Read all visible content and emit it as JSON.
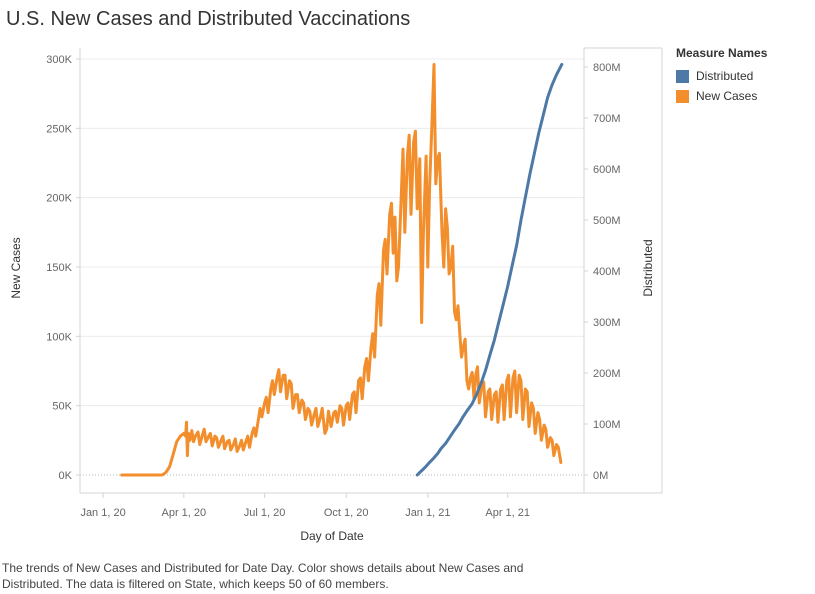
{
  "title": "U.S. New Cases and Distributed Vaccinations",
  "legend": {
    "title": "Measure Names",
    "items": [
      {
        "label": "Distributed",
        "color": "#4e79a7"
      },
      {
        "label": "New Cases",
        "color": "#f28e2b"
      }
    ]
  },
  "caption": "The trends of New Cases and Distributed for Date Day.  Color shows details about New Cases and Distributed. The data is filtered on State, which keeps 50 of 60 members.",
  "chart_data": {
    "type": "line",
    "xlabel": "Day of Date",
    "ylabel_left": "New Cases",
    "ylabel_right": "Distributed",
    "x_ticks": [
      {
        "date": "2020-01-01",
        "label": "Jan 1, 20"
      },
      {
        "date": "2020-04-01",
        "label": "Apr 1, 20"
      },
      {
        "date": "2020-07-01",
        "label": "Jul 1, 20"
      },
      {
        "date": "2020-10-01",
        "label": "Oct 1, 20"
      },
      {
        "date": "2021-01-01",
        "label": "Jan 1, 21"
      },
      {
        "date": "2021-04-01",
        "label": "Apr 1, 21"
      }
    ],
    "xlim": [
      "2019-12-06",
      "2021-06-26"
    ],
    "ylim_left": [
      0,
      305000
    ],
    "ylim_right": [
      0,
      826000000
    ],
    "y_ticks_left": [
      {
        "value": 0,
        "label": "0K"
      },
      {
        "value": 50000,
        "label": "50K"
      },
      {
        "value": 100000,
        "label": "100K"
      },
      {
        "value": 150000,
        "label": "150K"
      },
      {
        "value": 200000,
        "label": "200K"
      },
      {
        "value": 250000,
        "label": "250K"
      },
      {
        "value": 300000,
        "label": "300K"
      }
    ],
    "y_ticks_right": [
      {
        "value": 0,
        "label": "0M"
      },
      {
        "value": 100000000,
        "label": "100M"
      },
      {
        "value": 200000000,
        "label": "200M"
      },
      {
        "value": 300000000,
        "label": "300M"
      },
      {
        "value": 400000000,
        "label": "400M"
      },
      {
        "value": 500000000,
        "label": "500M"
      },
      {
        "value": 600000000,
        "label": "600M"
      },
      {
        "value": 700000000,
        "label": "700M"
      },
      {
        "value": 800000000,
        "label": "800M"
      }
    ],
    "grid": true,
    "legend_position": "top-right",
    "series": [
      {
        "name": "New Cases",
        "axis": "left",
        "color": "#f28e2b",
        "points": [
          [
            "2020-01-22",
            0
          ],
          [
            "2020-02-15",
            0
          ],
          [
            "2020-03-01",
            0
          ],
          [
            "2020-03-08",
            100
          ],
          [
            "2020-03-12",
            2000
          ],
          [
            "2020-03-16",
            6000
          ],
          [
            "2020-03-20",
            15000
          ],
          [
            "2020-03-24",
            24000
          ],
          [
            "2020-03-28",
            28000
          ],
          [
            "2020-04-01",
            30000
          ],
          [
            "2020-04-03",
            28000
          ],
          [
            "2020-04-04",
            38000
          ],
          [
            "2020-04-05",
            14000
          ],
          [
            "2020-04-06",
            30000
          ],
          [
            "2020-04-08",
            25000
          ],
          [
            "2020-04-10",
            32000
          ],
          [
            "2020-04-12",
            24000
          ],
          [
            "2020-04-14",
            28000
          ],
          [
            "2020-04-17",
            31000
          ],
          [
            "2020-04-19",
            22000
          ],
          [
            "2020-04-22",
            29000
          ],
          [
            "2020-04-24",
            33000
          ],
          [
            "2020-04-26",
            24000
          ],
          [
            "2020-04-29",
            28000
          ],
          [
            "2020-05-01",
            30000
          ],
          [
            "2020-05-03",
            21000
          ],
          [
            "2020-05-06",
            28000
          ],
          [
            "2020-05-08",
            27000
          ],
          [
            "2020-05-10",
            20000
          ],
          [
            "2020-05-13",
            25000
          ],
          [
            "2020-05-15",
            28000
          ],
          [
            "2020-05-17",
            19000
          ],
          [
            "2020-05-20",
            24000
          ],
          [
            "2020-05-22",
            25000
          ],
          [
            "2020-05-24",
            18000
          ],
          [
            "2020-05-27",
            22000
          ],
          [
            "2020-05-29",
            26000
          ],
          [
            "2020-05-31",
            17000
          ],
          [
            "2020-06-03",
            21000
          ],
          [
            "2020-06-05",
            25000
          ],
          [
            "2020-06-07",
            18000
          ],
          [
            "2020-06-10",
            24000
          ],
          [
            "2020-06-12",
            28000
          ],
          [
            "2020-06-14",
            20000
          ],
          [
            "2020-06-17",
            30000
          ],
          [
            "2020-06-19",
            34000
          ],
          [
            "2020-06-21",
            28000
          ],
          [
            "2020-06-24",
            40000
          ],
          [
            "2020-06-26",
            48000
          ],
          [
            "2020-06-28",
            42000
          ],
          [
            "2020-07-01",
            52000
          ],
          [
            "2020-07-03",
            56000
          ],
          [
            "2020-07-05",
            45000
          ],
          [
            "2020-07-08",
            62000
          ],
          [
            "2020-07-10",
            68000
          ],
          [
            "2020-07-12",
            58000
          ],
          [
            "2020-07-15",
            70000
          ],
          [
            "2020-07-17",
            76000
          ],
          [
            "2020-07-19",
            60000
          ],
          [
            "2020-07-22",
            72000
          ],
          [
            "2020-07-24",
            72000
          ],
          [
            "2020-07-26",
            55000
          ],
          [
            "2020-07-29",
            68000
          ],
          [
            "2020-07-31",
            66000
          ],
          [
            "2020-08-02",
            48000
          ],
          [
            "2020-08-05",
            58000
          ],
          [
            "2020-08-07",
            58000
          ],
          [
            "2020-08-09",
            45000
          ],
          [
            "2020-08-12",
            54000
          ],
          [
            "2020-08-14",
            52000
          ],
          [
            "2020-08-16",
            40000
          ],
          [
            "2020-08-19",
            48000
          ],
          [
            "2020-08-21",
            46000
          ],
          [
            "2020-08-23",
            36000
          ],
          [
            "2020-08-26",
            44000
          ],
          [
            "2020-08-28",
            48000
          ],
          [
            "2020-08-30",
            35000
          ],
          [
            "2020-09-02",
            42000
          ],
          [
            "2020-09-04",
            48000
          ],
          [
            "2020-09-07",
            30000
          ],
          [
            "2020-09-09",
            33000
          ],
          [
            "2020-09-11",
            46000
          ],
          [
            "2020-09-14",
            35000
          ],
          [
            "2020-09-17",
            45000
          ],
          [
            "2020-09-19",
            46000
          ],
          [
            "2020-09-21",
            38000
          ],
          [
            "2020-09-24",
            50000
          ],
          [
            "2020-09-26",
            48000
          ],
          [
            "2020-09-28",
            36000
          ],
          [
            "2020-10-01",
            50000
          ],
          [
            "2020-10-03",
            52000
          ],
          [
            "2020-10-05",
            40000
          ],
          [
            "2020-10-08",
            58000
          ],
          [
            "2020-10-10",
            60000
          ],
          [
            "2020-10-12",
            45000
          ],
          [
            "2020-10-15",
            68000
          ],
          [
            "2020-10-17",
            70000
          ],
          [
            "2020-10-19",
            55000
          ],
          [
            "2020-10-22",
            78000
          ],
          [
            "2020-10-24",
            84000
          ],
          [
            "2020-10-26",
            68000
          ],
          [
            "2020-10-29",
            92000
          ],
          [
            "2020-10-31",
            102000
          ],
          [
            "2020-11-02",
            85000
          ],
          [
            "2020-11-05",
            130000
          ],
          [
            "2020-11-07",
            138000
          ],
          [
            "2020-11-09",
            108000
          ],
          [
            "2020-11-12",
            162000
          ],
          [
            "2020-11-14",
            170000
          ],
          [
            "2020-11-16",
            145000
          ],
          [
            "2020-11-19",
            188000
          ],
          [
            "2020-11-21",
            196000
          ],
          [
            "2020-11-23",
            160000
          ],
          [
            "2020-11-25",
            186000
          ],
          [
            "2020-11-27",
            140000
          ],
          [
            "2020-11-29",
            150000
          ],
          [
            "2020-12-02",
            200000
          ],
          [
            "2020-12-04",
            235000
          ],
          [
            "2020-12-06",
            175000
          ],
          [
            "2020-12-09",
            230000
          ],
          [
            "2020-12-11",
            245000
          ],
          [
            "2020-12-13",
            188000
          ],
          [
            "2020-12-16",
            240000
          ],
          [
            "2020-12-18",
            248000
          ],
          [
            "2020-12-20",
            192000
          ],
          [
            "2020-12-23",
            228000
          ],
          [
            "2020-12-25",
            110000
          ],
          [
            "2020-12-27",
            175000
          ],
          [
            "2020-12-30",
            230000
          ],
          [
            "2021-01-01",
            150000
          ],
          [
            "2021-01-03",
            208000
          ],
          [
            "2021-01-06",
            260000
          ],
          [
            "2021-01-08",
            296000
          ],
          [
            "2021-01-10",
            210000
          ],
          [
            "2021-01-12",
            228000
          ],
          [
            "2021-01-14",
            232000
          ],
          [
            "2021-01-17",
            175000
          ],
          [
            "2021-01-19",
            150000
          ],
          [
            "2021-01-21",
            192000
          ],
          [
            "2021-01-23",
            178000
          ],
          [
            "2021-01-25",
            145000
          ],
          [
            "2021-01-27",
            150000
          ],
          [
            "2021-01-29",
            165000
          ],
          [
            "2021-01-31",
            118000
          ],
          [
            "2021-02-02",
            112000
          ],
          [
            "2021-02-04",
            122000
          ],
          [
            "2021-02-06",
            102000
          ],
          [
            "2021-02-08",
            85000
          ],
          [
            "2021-02-10",
            92000
          ],
          [
            "2021-02-12",
            98000
          ],
          [
            "2021-02-14",
            68000
          ],
          [
            "2021-02-16",
            62000
          ],
          [
            "2021-02-18",
            70000
          ],
          [
            "2021-02-20",
            74000
          ],
          [
            "2021-02-22",
            55000
          ],
          [
            "2021-02-24",
            72000
          ],
          [
            "2021-02-26",
            78000
          ],
          [
            "2021-02-28",
            52000
          ],
          [
            "2021-03-03",
            66000
          ],
          [
            "2021-03-05",
            67000
          ],
          [
            "2021-03-07",
            42000
          ],
          [
            "2021-03-10",
            60000
          ],
          [
            "2021-03-12",
            62000
          ],
          [
            "2021-03-14",
            40000
          ],
          [
            "2021-03-17",
            58000
          ],
          [
            "2021-03-19",
            60000
          ],
          [
            "2021-03-21",
            38000
          ],
          [
            "2021-03-24",
            62000
          ],
          [
            "2021-03-26",
            65000
          ],
          [
            "2021-03-28",
            40000
          ],
          [
            "2021-03-31",
            68000
          ],
          [
            "2021-04-02",
            72000
          ],
          [
            "2021-04-04",
            42000
          ],
          [
            "2021-04-07",
            70000
          ],
          [
            "2021-04-09",
            75000
          ],
          [
            "2021-04-11",
            45000
          ],
          [
            "2021-04-14",
            72000
          ],
          [
            "2021-04-16",
            68000
          ],
          [
            "2021-04-18",
            40000
          ],
          [
            "2021-04-21",
            62000
          ],
          [
            "2021-04-23",
            60000
          ],
          [
            "2021-04-25",
            35000
          ],
          [
            "2021-04-28",
            52000
          ],
          [
            "2021-04-30",
            48000
          ],
          [
            "2021-05-02",
            30000
          ],
          [
            "2021-05-05",
            45000
          ],
          [
            "2021-05-07",
            40000
          ],
          [
            "2021-05-09",
            25000
          ],
          [
            "2021-05-12",
            36000
          ],
          [
            "2021-05-14",
            33000
          ],
          [
            "2021-05-16",
            20000
          ],
          [
            "2021-05-19",
            27000
          ],
          [
            "2021-05-21",
            25000
          ],
          [
            "2021-05-23",
            14000
          ],
          [
            "2021-05-26",
            22000
          ],
          [
            "2021-05-28",
            20000
          ],
          [
            "2021-05-31",
            9000
          ]
        ]
      },
      {
        "name": "Distributed",
        "axis": "right",
        "color": "#4e79a7",
        "points": [
          [
            "2020-12-20",
            0
          ],
          [
            "2020-12-23",
            5000000
          ],
          [
            "2020-12-26",
            10000000
          ],
          [
            "2020-12-30",
            17000000
          ],
          [
            "2021-01-03",
            25000000
          ],
          [
            "2021-01-07",
            32000000
          ],
          [
            "2021-01-12",
            42000000
          ],
          [
            "2021-01-16",
            52000000
          ],
          [
            "2021-01-21",
            62000000
          ],
          [
            "2021-01-26",
            75000000
          ],
          [
            "2021-01-31",
            88000000
          ],
          [
            "2021-02-05",
            100000000
          ],
          [
            "2021-02-10",
            115000000
          ],
          [
            "2021-02-15",
            128000000
          ],
          [
            "2021-02-20",
            140000000
          ],
          [
            "2021-02-25",
            158000000
          ],
          [
            "2021-03-02",
            180000000
          ],
          [
            "2021-03-07",
            205000000
          ],
          [
            "2021-03-12",
            235000000
          ],
          [
            "2021-03-17",
            265000000
          ],
          [
            "2021-03-22",
            300000000
          ],
          [
            "2021-03-27",
            335000000
          ],
          [
            "2021-04-01",
            370000000
          ],
          [
            "2021-04-06",
            410000000
          ],
          [
            "2021-04-11",
            450000000
          ],
          [
            "2021-04-16",
            500000000
          ],
          [
            "2021-04-21",
            545000000
          ],
          [
            "2021-04-26",
            590000000
          ],
          [
            "2021-05-01",
            630000000
          ],
          [
            "2021-05-06",
            670000000
          ],
          [
            "2021-05-11",
            705000000
          ],
          [
            "2021-05-16",
            740000000
          ],
          [
            "2021-05-21",
            765000000
          ],
          [
            "2021-05-26",
            785000000
          ],
          [
            "2021-06-01",
            805000000
          ]
        ]
      }
    ]
  }
}
